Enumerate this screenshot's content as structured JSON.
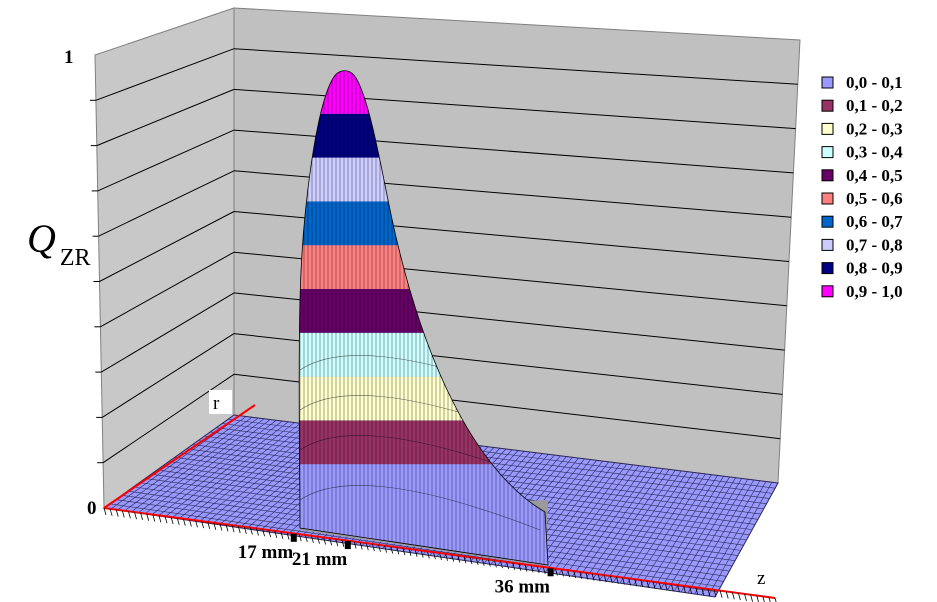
{
  "chart_data": {
    "type": "surface",
    "ylabel": "Q",
    "ylabel_subscript": "ZR",
    "z_axis_label": "r",
    "x_axis_label": "z",
    "zlim": [
      0,
      1
    ],
    "vertical_ticks": [
      "0",
      "1"
    ],
    "x_ticks": [
      {
        "label": "17 mm",
        "value": 17
      },
      {
        "label": "21 mm",
        "value": 21
      },
      {
        "label": "36 mm",
        "value": 36
      }
    ],
    "gridlines": true,
    "legend_position": "right",
    "bands": [
      {
        "label": "0,0 - 0,1",
        "color": "#9999ff"
      },
      {
        "label": "0,1 - 0,2",
        "color": "#993366"
      },
      {
        "label": "0,2 - 0,3",
        "color": "#ffffcc"
      },
      {
        "label": "0,3 - 0,4",
        "color": "#ccffff"
      },
      {
        "label": "0,4 - 0,5",
        "color": "#660066"
      },
      {
        "label": "0,5 - 0,6",
        "color": "#ff8080"
      },
      {
        "label": "0,6 - 0,7",
        "color": "#0066cc"
      },
      {
        "label": "0,7 - 0,8",
        "color": "#ccccff"
      },
      {
        "label": "0,8 - 0,9",
        "color": "#000080"
      },
      {
        "label": "0,9 - 1,0",
        "color": "#ff00ff"
      }
    ],
    "peak": {
      "z_mm": 21,
      "value": 1.0
    }
  }
}
